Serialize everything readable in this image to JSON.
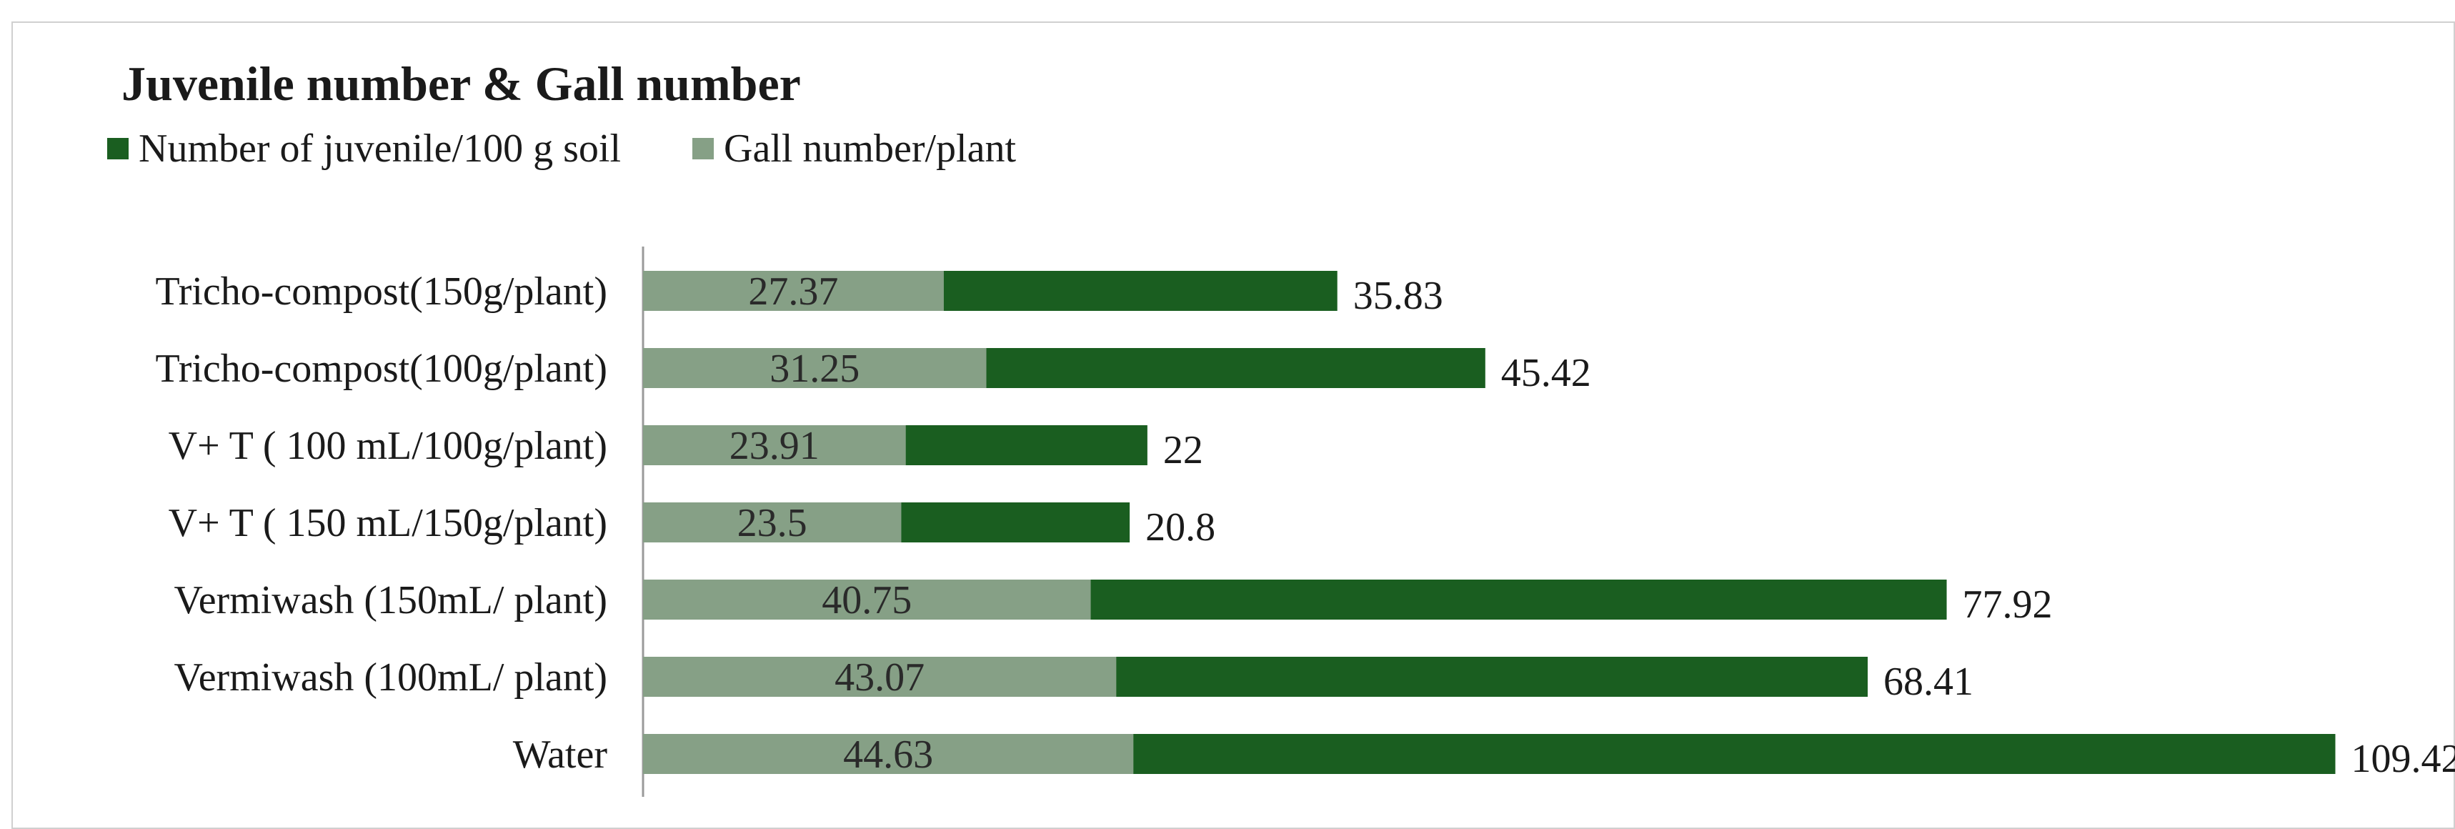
{
  "chart_data": {
    "type": "bar",
    "orientation": "horizontal",
    "stacked": true,
    "title": "Juvenile number & Gall number",
    "categories": [
      "Tricho-compost(150g/plant)",
      "Tricho-compost(100g/plant)",
      "V+ T ( 100 mL/100g/plant)",
      "V+ T ( 150 mL/150g/plant)",
      "Vermiwash (150mL/ plant)",
      "Vermiwash (100mL/ plant)",
      "Water"
    ],
    "series": [
      {
        "name": "Gall number/plant",
        "color": "#86a086",
        "values": [
          27.37,
          31.25,
          23.91,
          23.5,
          40.75,
          43.07,
          44.63
        ]
      },
      {
        "name": "Number of juvenile/100 g soil",
        "color": "#1a5e20",
        "values": [
          35.83,
          45.42,
          22,
          20.8,
          77.92,
          68.41,
          109.42
        ]
      }
    ],
    "xlim": [
      0,
      160
    ],
    "grid": false,
    "legend_position": "top-left",
    "legend_order": [
      "Number of juvenile/100 g soil",
      "Gall number/plant"
    ]
  }
}
